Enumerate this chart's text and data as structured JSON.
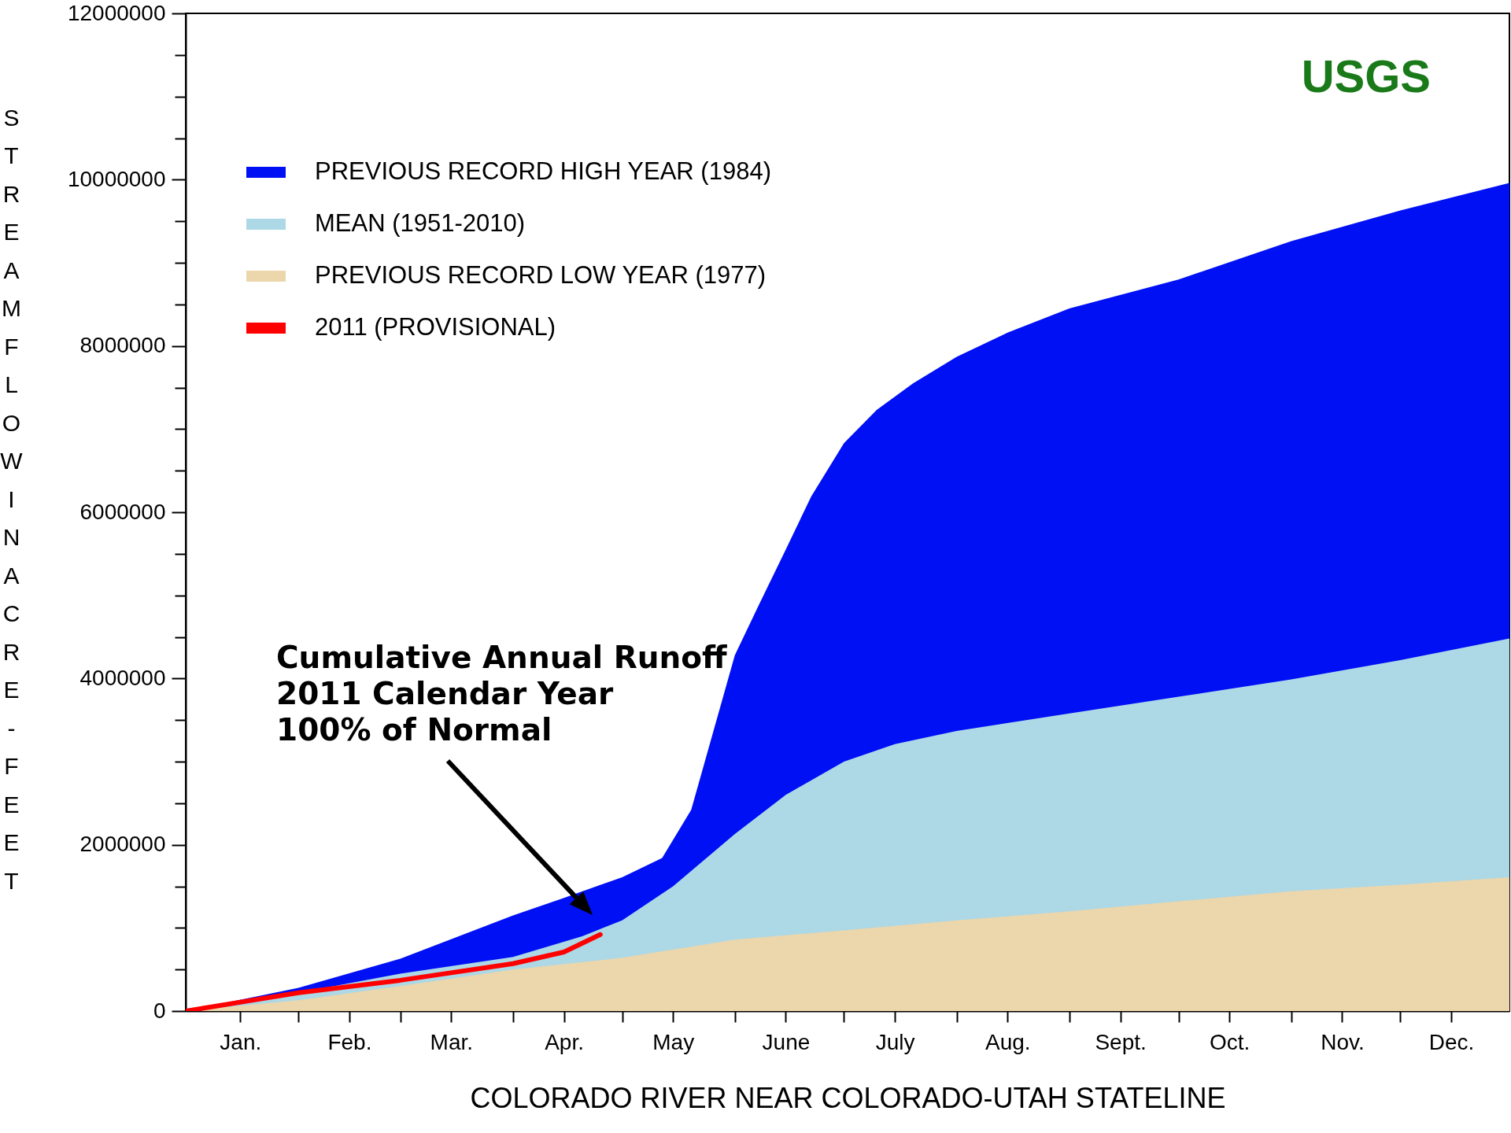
{
  "chart_data": {
    "type": "area",
    "xlabel": "COLORADO RIVER NEAR COLORADO-UTAH STATELINE",
    "ylabel": "STREAMFLOW IN ACRE-FEET",
    "x": [
      "--01-01",
      "--02-01",
      "--03-01",
      "--04-01",
      "--04-15",
      "--05-01",
      "--05-12",
      "--05-20",
      "--05-26",
      "--06-01",
      "--06-08",
      "--06-15",
      "--06-22",
      "--07-01",
      "--07-10",
      "--07-20",
      "--08-01",
      "--08-15",
      "--09-01",
      "--10-01",
      "--11-01",
      "--12-01",
      "--12-31"
    ],
    "series": [
      {
        "name": "PREVIOUS RECORD HIGH YEAR (1984)",
        "color": "#0010f5",
        "values": [
          0,
          280000,
          630000,
          1150000,
          1360000,
          1610000,
          1840000,
          2420000,
          3350000,
          4280000,
          4920000,
          5550000,
          6190000,
          6830000,
          7230000,
          7550000,
          7870000,
          8160000,
          8450000,
          8800000,
          9260000,
          9630000,
          9960000
        ]
      },
      {
        "name": "MEAN (1951-2010)",
        "color": "#add8e6",
        "x": [
          "--01-01",
          "--02-01",
          "--03-01",
          "--04-01",
          "--04-20",
          "--05-01",
          "--05-15",
          "--06-01",
          "--06-15",
          "--07-01",
          "--07-15",
          "--08-01",
          "--09-01",
          "--10-01",
          "--11-01",
          "--12-01",
          "--12-31"
        ],
        "values": [
          0,
          220000,
          450000,
          650000,
          900000,
          1090000,
          1500000,
          2130000,
          2600000,
          3000000,
          3210000,
          3370000,
          3580000,
          3780000,
          3990000,
          4220000,
          4480000
        ]
      },
      {
        "name": "PREVIOUS RECORD LOW YEAR (1977)",
        "color": "#ecd6ab",
        "x": [
          "--01-01",
          "--02-01",
          "--03-01",
          "--04-01",
          "--05-01",
          "--06-01",
          "--07-01",
          "--08-01",
          "--09-01",
          "--10-01",
          "--11-01",
          "--12-01",
          "--12-31"
        ],
        "values": [
          0,
          130000,
          300000,
          500000,
          640000,
          860000,
          970000,
          1090000,
          1200000,
          1320000,
          1440000,
          1520000,
          1610000
        ]
      },
      {
        "name": "2011 (PROVISIONAL)",
        "type": "line",
        "color": "#ff0000",
        "x": [
          "--01-01",
          "--02-01",
          "--03-01",
          "--04-01",
          "--04-15",
          "--04-25"
        ],
        "values": [
          0,
          220000,
          370000,
          570000,
          710000,
          920000
        ]
      }
    ],
    "xlim": [
      "--01-01",
      "--12-31"
    ],
    "xticks": [
      {
        "value": "--02-01",
        "label": null
      },
      {
        "value": "--03-01",
        "label": null
      },
      {
        "value": "--04-01",
        "label": null
      },
      {
        "value": "--05-01",
        "label": null
      },
      {
        "value": "--06-01",
        "label": null
      },
      {
        "value": "--07-01",
        "label": null
      },
      {
        "value": "--08-01",
        "label": null
      },
      {
        "value": "--09-01",
        "label": null
      },
      {
        "value": "--10-01",
        "label": null
      },
      {
        "value": "--11-01",
        "label": null
      },
      {
        "value": "--12-01",
        "label": null
      },
      {
        "value": "--01-16",
        "label": "Jan."
      },
      {
        "value": "--02-15",
        "label": "Feb."
      },
      {
        "value": "--03-15",
        "label": "Mar."
      },
      {
        "value": "--04-15",
        "label": "Apr."
      },
      {
        "value": "--05-15",
        "label": "May"
      },
      {
        "value": "--06-15",
        "label": "June"
      },
      {
        "value": "--07-15",
        "label": "July"
      },
      {
        "value": "--08-15",
        "label": "Aug."
      },
      {
        "value": "--09-15",
        "label": "Sept."
      },
      {
        "value": "--10-15",
        "label": "Oct."
      },
      {
        "value": "--11-15",
        "label": "Nov."
      },
      {
        "value": "--12-15",
        "label": "Dec."
      }
    ],
    "ylim": [
      0,
      12000000
    ],
    "yticks": [
      0,
      {
        "value": 500000,
        "label": null
      },
      {
        "value": 1000000,
        "label": null
      },
      {
        "value": 1500000,
        "label": null
      },
      2000000,
      {
        "value": 2500000,
        "label": null
      },
      {
        "value": 3000000,
        "label": null
      },
      {
        "value": 3500000,
        "label": null
      },
      4000000,
      {
        "value": 4500000,
        "label": null
      },
      {
        "value": 5000000,
        "label": null
      },
      {
        "value": 5500000,
        "label": null
      },
      6000000,
      {
        "value": 6500000,
        "label": null
      },
      {
        "value": 7000000,
        "label": null
      },
      {
        "value": 7500000,
        "label": null
      },
      8000000,
      {
        "value": 8500000,
        "label": null
      },
      {
        "value": 9000000,
        "label": null
      },
      {
        "value": 9500000,
        "label": null
      },
      10000000,
      {
        "value": 10500000,
        "label": null
      },
      {
        "value": 11000000,
        "label": null
      },
      {
        "value": 11500000,
        "label": null
      },
      12000000
    ],
    "legend": "top left",
    "annotations": [
      "USGS",
      "Cumulative Annual Runoff\n2011 Calendar Year\n100% of Normal"
    ]
  }
}
